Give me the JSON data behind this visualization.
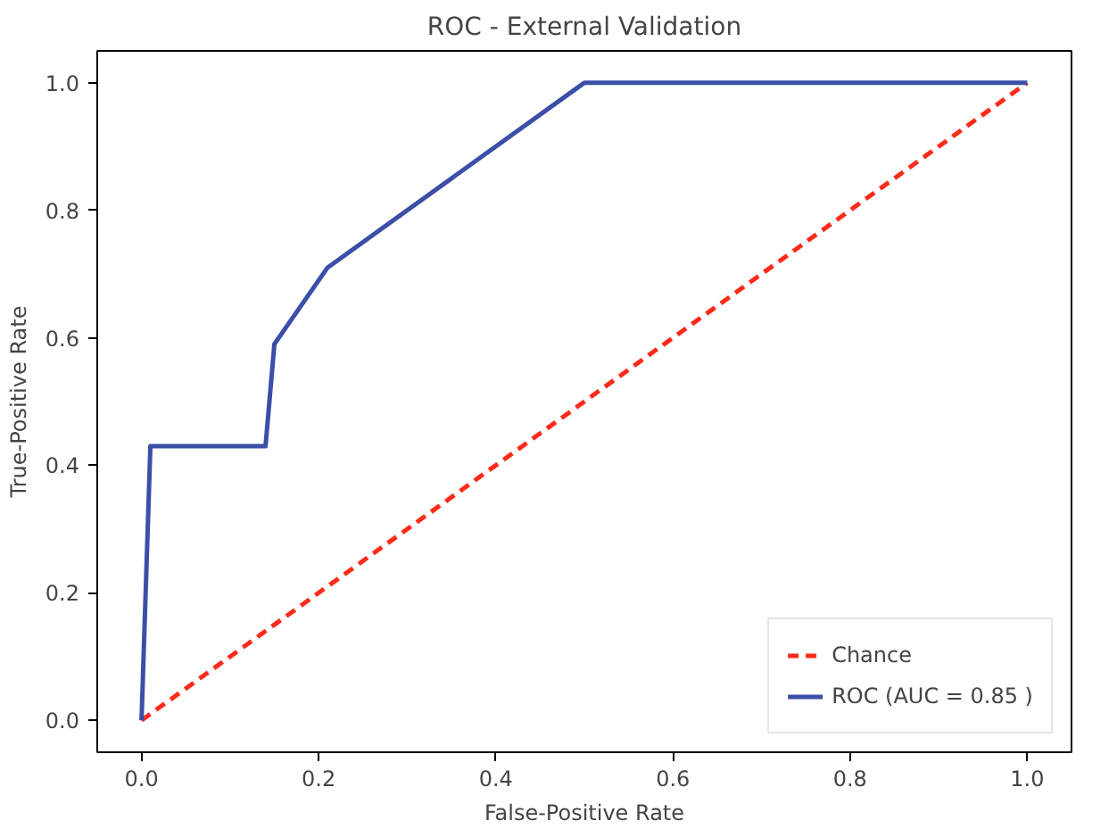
{
  "chart_data": {
    "type": "line",
    "title": "ROC - External Validation",
    "xlabel": "False-Positive Rate",
    "ylabel": "True-Positive Rate",
    "xlim": [
      -0.05,
      1.05
    ],
    "ylim": [
      -0.05,
      1.05
    ],
    "xticks": [
      {
        "value": 0,
        "label": "0.0"
      },
      0.2,
      0.4,
      0.6,
      0.8,
      {
        "value": 1,
        "label": "1.0"
      }
    ],
    "yticks": [
      {
        "value": 0,
        "label": "0.0"
      },
      0.2,
      0.4,
      0.6,
      0.8,
      {
        "value": 1,
        "label": "1.0"
      }
    ],
    "legend": "bottom right",
    "grid": false,
    "series": [
      {
        "name": "Chance",
        "color": "#ff2a1a",
        "line_style": "dashed",
        "x": [
          0,
          1
        ],
        "values": [
          0,
          1
        ]
      },
      {
        "name": "ROC (AUC = 0.85 )",
        "color": "#3b4ea8",
        "line_style": "solid",
        "x": [
          0,
          0.01,
          0.14,
          0.15,
          0.21,
          0.49,
          0.5,
          1
        ],
        "values": [
          0,
          0.43,
          0.43,
          0.59,
          0.71,
          0.99,
          1,
          1
        ]
      }
    ]
  }
}
